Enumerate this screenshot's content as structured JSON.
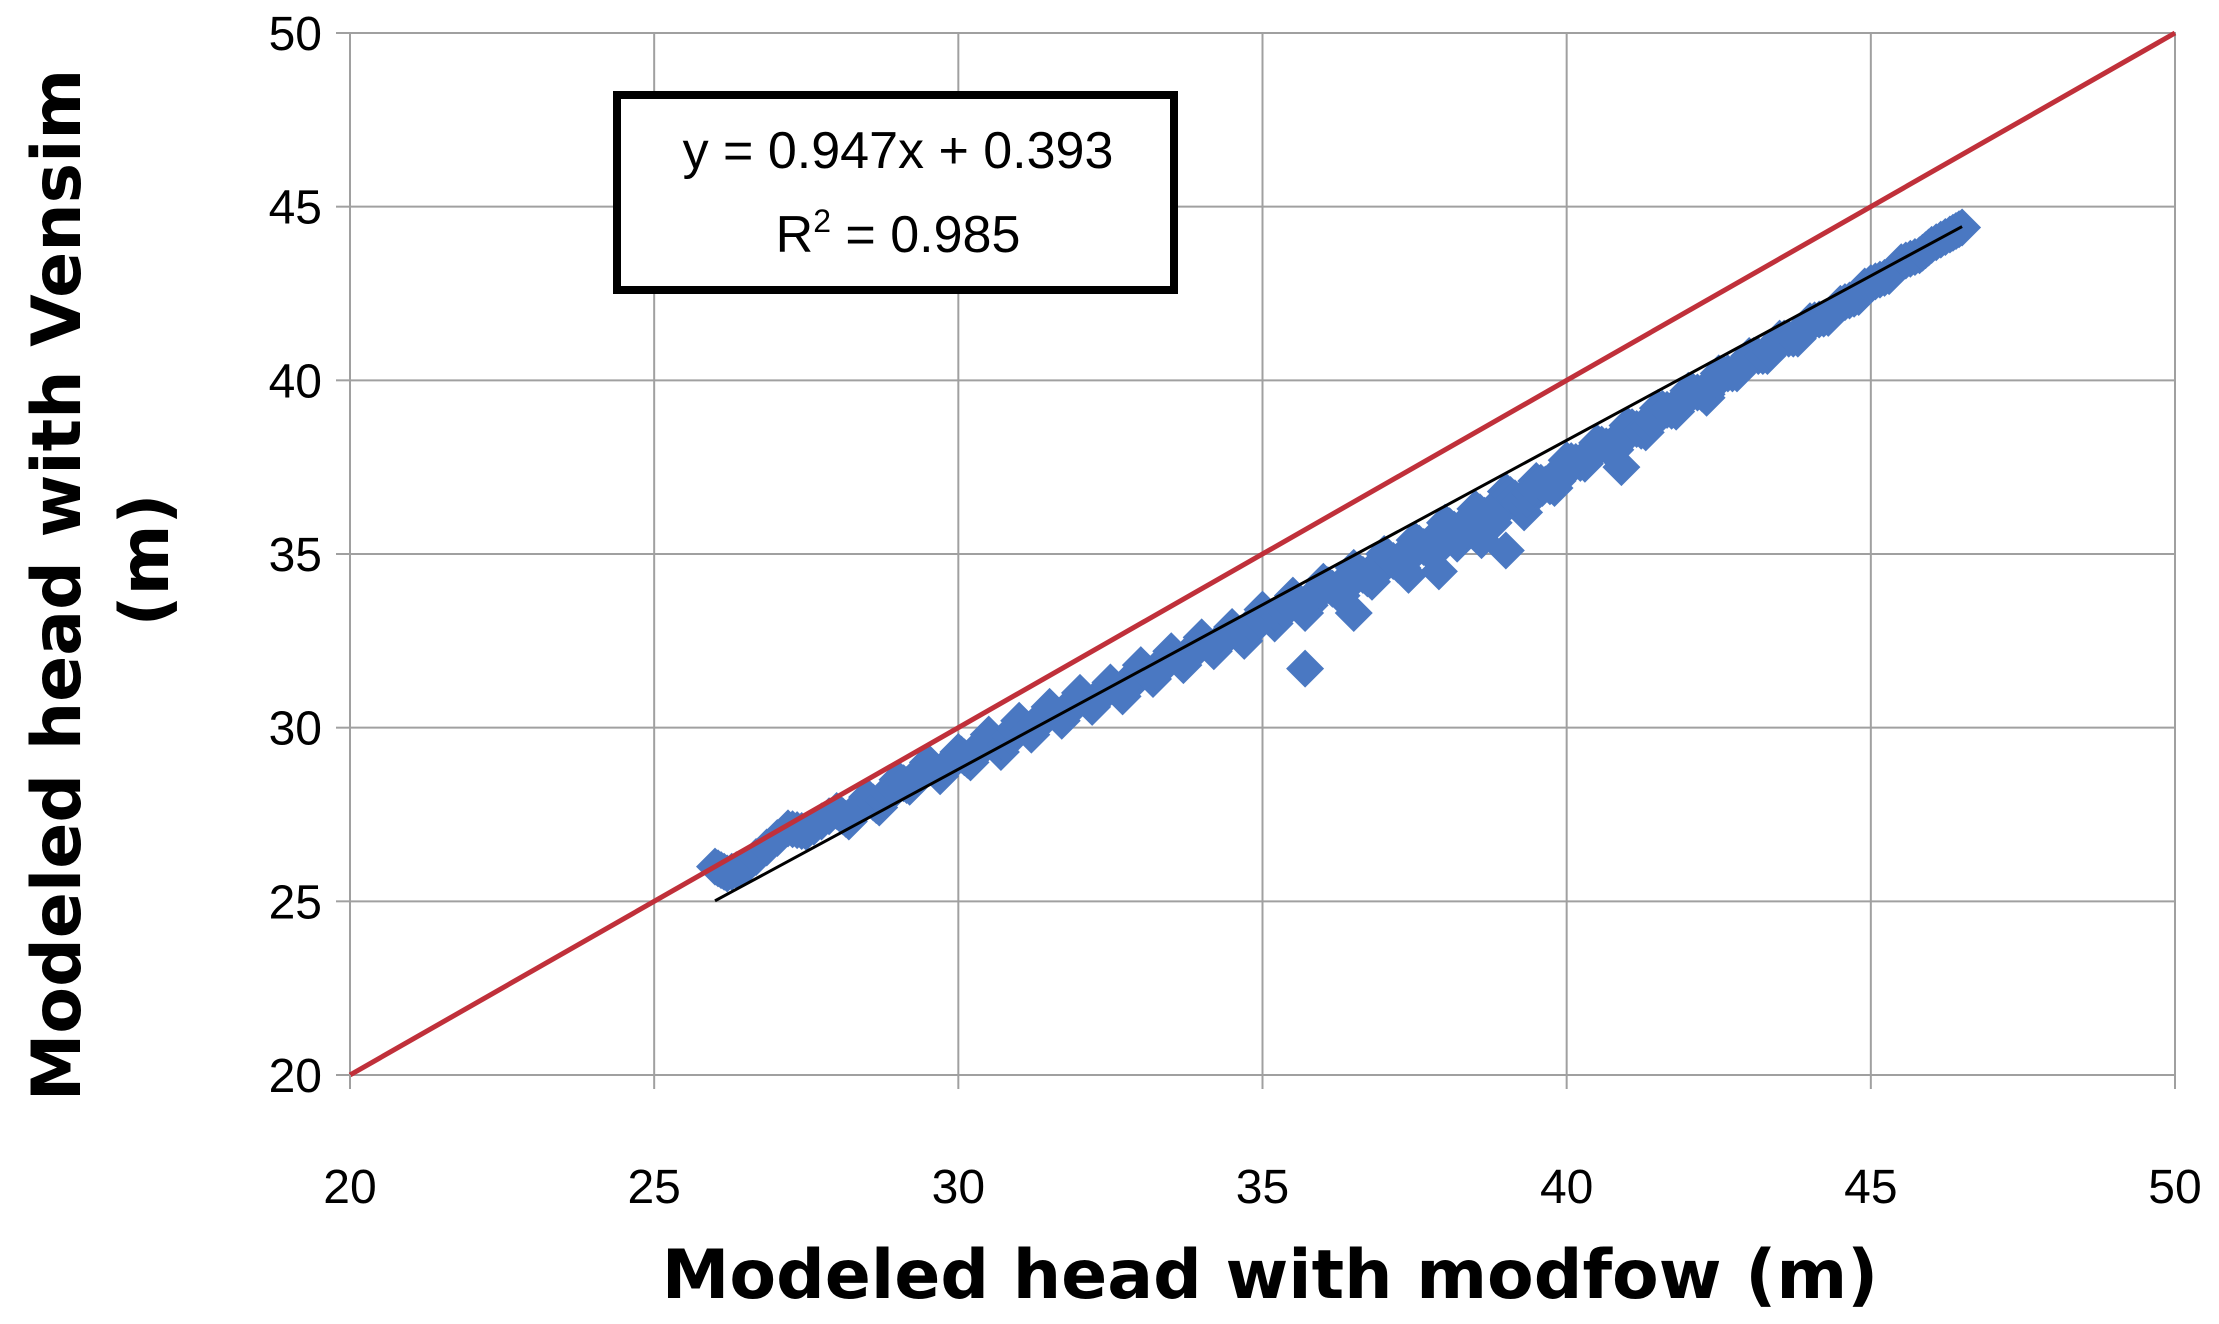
{
  "chart_data": {
    "type": "scatter",
    "xlabel": "Modeled head with modfow (m)",
    "ylabel_line1": "Modeled head with Vensim",
    "ylabel_line2": "(m)",
    "xlim": [
      20,
      50
    ],
    "ylim": [
      20,
      50
    ],
    "xticks": [
      20,
      25,
      30,
      35,
      40,
      45,
      50
    ],
    "yticks": [
      20,
      25,
      30,
      35,
      40,
      45,
      50
    ],
    "grid": true,
    "equation": {
      "line1": "y = 0.947x  + 0.393",
      "line2_prefix": "R",
      "line2_sup": "2",
      "line2_suffix": " = 0.985"
    },
    "one_to_one_line": {
      "x": [
        20,
        50
      ],
      "y": [
        20,
        50
      ],
      "color": "#c0303a"
    },
    "trendline": {
      "slope": 0.947,
      "intercept": 0.393,
      "x_range": [
        26.0,
        46.5
      ],
      "color": "#000000"
    },
    "series": [
      {
        "marker": "diamond",
        "color": "#4a78c2",
        "points": [
          [
            26.0,
            26.0
          ],
          [
            26.2,
            25.8
          ],
          [
            26.5,
            26.0
          ],
          [
            27.2,
            27.1
          ],
          [
            27.5,
            27.0
          ],
          [
            28.0,
            27.6
          ],
          [
            28.2,
            27.3
          ],
          [
            28.5,
            28.0
          ],
          [
            28.7,
            27.7
          ],
          [
            29.0,
            28.5
          ],
          [
            29.2,
            28.3
          ],
          [
            29.5,
            29.0
          ],
          [
            29.7,
            28.6
          ],
          [
            30.0,
            29.3
          ],
          [
            30.2,
            29.0
          ],
          [
            30.5,
            29.8
          ],
          [
            30.7,
            29.3
          ],
          [
            31.0,
            30.2
          ],
          [
            31.2,
            29.8
          ],
          [
            31.5,
            30.6
          ],
          [
            31.7,
            30.2
          ],
          [
            32.0,
            31.0
          ],
          [
            32.2,
            30.6
          ],
          [
            32.5,
            31.3
          ],
          [
            32.7,
            30.9
          ],
          [
            33.0,
            31.8
          ],
          [
            33.2,
            31.4
          ],
          [
            33.5,
            32.2
          ],
          [
            33.7,
            31.8
          ],
          [
            34.0,
            32.6
          ],
          [
            34.2,
            32.2
          ],
          [
            34.5,
            32.9
          ],
          [
            34.7,
            32.5
          ],
          [
            35.0,
            33.4
          ],
          [
            35.2,
            33.0
          ],
          [
            35.5,
            33.8
          ],
          [
            35.7,
            33.3
          ],
          [
            36.0,
            34.2
          ],
          [
            36.3,
            33.8
          ],
          [
            36.5,
            34.6
          ],
          [
            36.8,
            34.2
          ],
          [
            37.0,
            35.0
          ],
          [
            37.3,
            34.6
          ],
          [
            37.5,
            35.4
          ],
          [
            37.8,
            35.0
          ],
          [
            38.0,
            35.9
          ],
          [
            38.3,
            35.5
          ],
          [
            38.5,
            36.3
          ],
          [
            38.8,
            35.9
          ],
          [
            39.0,
            36.8
          ],
          [
            39.3,
            36.4
          ],
          [
            39.5,
            37.1
          ],
          [
            39.8,
            36.9
          ],
          [
            40.0,
            37.7
          ],
          [
            40.3,
            37.6
          ],
          [
            40.5,
            38.2
          ],
          [
            40.8,
            38.0
          ],
          [
            41.0,
            38.7
          ],
          [
            41.3,
            38.5
          ],
          [
            41.5,
            39.2
          ],
          [
            41.8,
            39.1
          ],
          [
            42.0,
            39.7
          ],
          [
            42.3,
            39.6
          ],
          [
            42.5,
            40.2
          ],
          [
            42.8,
            40.2
          ],
          [
            43.0,
            40.7
          ],
          [
            43.3,
            40.7
          ],
          [
            43.5,
            41.2
          ],
          [
            43.8,
            41.2
          ],
          [
            44.0,
            41.7
          ],
          [
            44.3,
            41.8
          ],
          [
            44.5,
            42.2
          ],
          [
            44.8,
            42.4
          ],
          [
            45.0,
            42.8
          ],
          [
            45.3,
            43.0
          ],
          [
            45.5,
            43.4
          ],
          [
            45.8,
            43.6
          ],
          [
            46.0,
            43.9
          ],
          [
            46.3,
            44.2
          ],
          [
            46.5,
            44.4
          ],
          [
            35.7,
            31.7
          ],
          [
            36.5,
            33.3
          ],
          [
            37.9,
            34.5
          ],
          [
            38.6,
            35.4
          ],
          [
            39.0,
            35.1
          ],
          [
            39.3,
            36.2
          ],
          [
            39.6,
            36.9
          ],
          [
            40.9,
            37.5
          ],
          [
            42.3,
            39.5
          ],
          [
            44.9,
            42.7
          ],
          [
            37.4,
            34.4
          ],
          [
            38.2,
            35.3
          ]
        ]
      }
    ]
  }
}
